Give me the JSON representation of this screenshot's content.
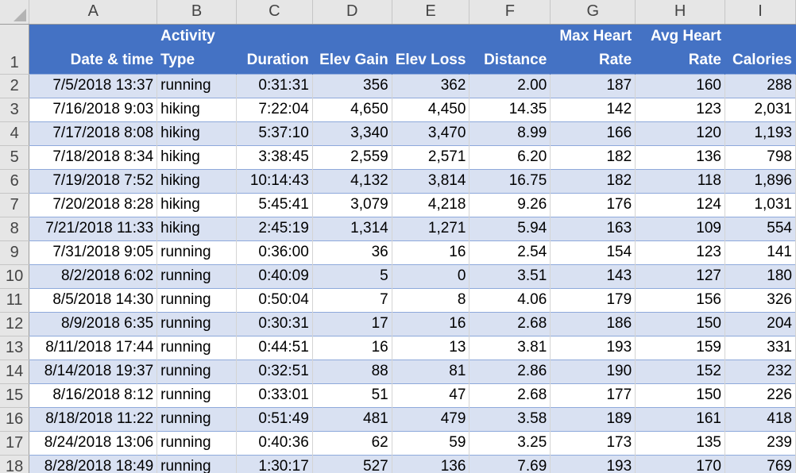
{
  "columns": [
    "A",
    "B",
    "C",
    "D",
    "E",
    "F",
    "G",
    "H",
    "I"
  ],
  "header": {
    "row_number": "1",
    "date_time": "Date & time",
    "activity_type_1": "Activity",
    "activity_type_2": "Type",
    "duration": "Duration",
    "elev_gain": "Elev Gain",
    "elev_loss": "Elev Loss",
    "distance": "Distance",
    "max_hr_1": "Max Heart",
    "max_hr_2": "Rate",
    "avg_hr_1": "Avg Heart",
    "avg_hr_2": "Rate",
    "calories": "Calories"
  },
  "rows": [
    {
      "n": "2",
      "date": "7/5/2018 13:37",
      "type": "running",
      "dur": "0:31:31",
      "gain": "356",
      "loss": "362",
      "dist": "2.00",
      "max": "187",
      "avg": "160",
      "cal": "288"
    },
    {
      "n": "3",
      "date": "7/16/2018 9:03",
      "type": "hiking",
      "dur": "7:22:04",
      "gain": "4,650",
      "loss": "4,450",
      "dist": "14.35",
      "max": "142",
      "avg": "123",
      "cal": "2,031"
    },
    {
      "n": "4",
      "date": "7/17/2018 8:08",
      "type": "hiking",
      "dur": "5:37:10",
      "gain": "3,340",
      "loss": "3,470",
      "dist": "8.99",
      "max": "166",
      "avg": "120",
      "cal": "1,193"
    },
    {
      "n": "5",
      "date": "7/18/2018 8:34",
      "type": "hiking",
      "dur": "3:38:45",
      "gain": "2,559",
      "loss": "2,571",
      "dist": "6.20",
      "max": "182",
      "avg": "136",
      "cal": "798"
    },
    {
      "n": "6",
      "date": "7/19/2018 7:52",
      "type": "hiking",
      "dur": "10:14:43",
      "gain": "4,132",
      "loss": "3,814",
      "dist": "16.75",
      "max": "182",
      "avg": "118",
      "cal": "1,896"
    },
    {
      "n": "7",
      "date": "7/20/2018 8:28",
      "type": "hiking",
      "dur": "5:45:41",
      "gain": "3,079",
      "loss": "4,218",
      "dist": "9.26",
      "max": "176",
      "avg": "124",
      "cal": "1,031"
    },
    {
      "n": "8",
      "date": "7/21/2018 11:33",
      "type": "hiking",
      "dur": "2:45:19",
      "gain": "1,314",
      "loss": "1,271",
      "dist": "5.94",
      "max": "163",
      "avg": "109",
      "cal": "554"
    },
    {
      "n": "9",
      "date": "7/31/2018 9:05",
      "type": "running",
      "dur": "0:36:00",
      "gain": "36",
      "loss": "16",
      "dist": "2.54",
      "max": "154",
      "avg": "123",
      "cal": "141"
    },
    {
      "n": "10",
      "date": "8/2/2018 6:02",
      "type": "running",
      "dur": "0:40:09",
      "gain": "5",
      "loss": "0",
      "dist": "3.51",
      "max": "143",
      "avg": "127",
      "cal": "180"
    },
    {
      "n": "11",
      "date": "8/5/2018 14:30",
      "type": "running",
      "dur": "0:50:04",
      "gain": "7",
      "loss": "8",
      "dist": "4.06",
      "max": "179",
      "avg": "156",
      "cal": "326"
    },
    {
      "n": "12",
      "date": "8/9/2018 6:35",
      "type": "running",
      "dur": "0:30:31",
      "gain": "17",
      "loss": "16",
      "dist": "2.68",
      "max": "186",
      "avg": "150",
      "cal": "204"
    },
    {
      "n": "13",
      "date": "8/11/2018 17:44",
      "type": "running",
      "dur": "0:44:51",
      "gain": "16",
      "loss": "13",
      "dist": "3.81",
      "max": "193",
      "avg": "159",
      "cal": "331"
    },
    {
      "n": "14",
      "date": "8/14/2018 19:37",
      "type": "running",
      "dur": "0:32:51",
      "gain": "88",
      "loss": "81",
      "dist": "2.86",
      "max": "190",
      "avg": "152",
      "cal": "232"
    },
    {
      "n": "15",
      "date": "8/16/2018 8:12",
      "type": "running",
      "dur": "0:33:01",
      "gain": "51",
      "loss": "47",
      "dist": "2.68",
      "max": "177",
      "avg": "150",
      "cal": "226"
    },
    {
      "n": "16",
      "date": "8/18/2018 11:22",
      "type": "running",
      "dur": "0:51:49",
      "gain": "481",
      "loss": "479",
      "dist": "3.58",
      "max": "189",
      "avg": "161",
      "cal": "418"
    },
    {
      "n": "17",
      "date": "8/24/2018 13:06",
      "type": "running",
      "dur": "0:40:36",
      "gain": "62",
      "loss": "59",
      "dist": "3.25",
      "max": "173",
      "avg": "135",
      "cal": "239"
    },
    {
      "n": "18",
      "date": "8/28/2018 18:49",
      "type": "running",
      "dur": "1:30:17",
      "gain": "527",
      "loss": "136",
      "dist": "7.69",
      "max": "193",
      "avg": "170",
      "cal": "769"
    }
  ],
  "colors": {
    "header_fill": "#4472c4",
    "band_fill": "#d9e1f2",
    "gridline": "#d4d4d4",
    "row_header_fill": "#e6e6e6"
  }
}
